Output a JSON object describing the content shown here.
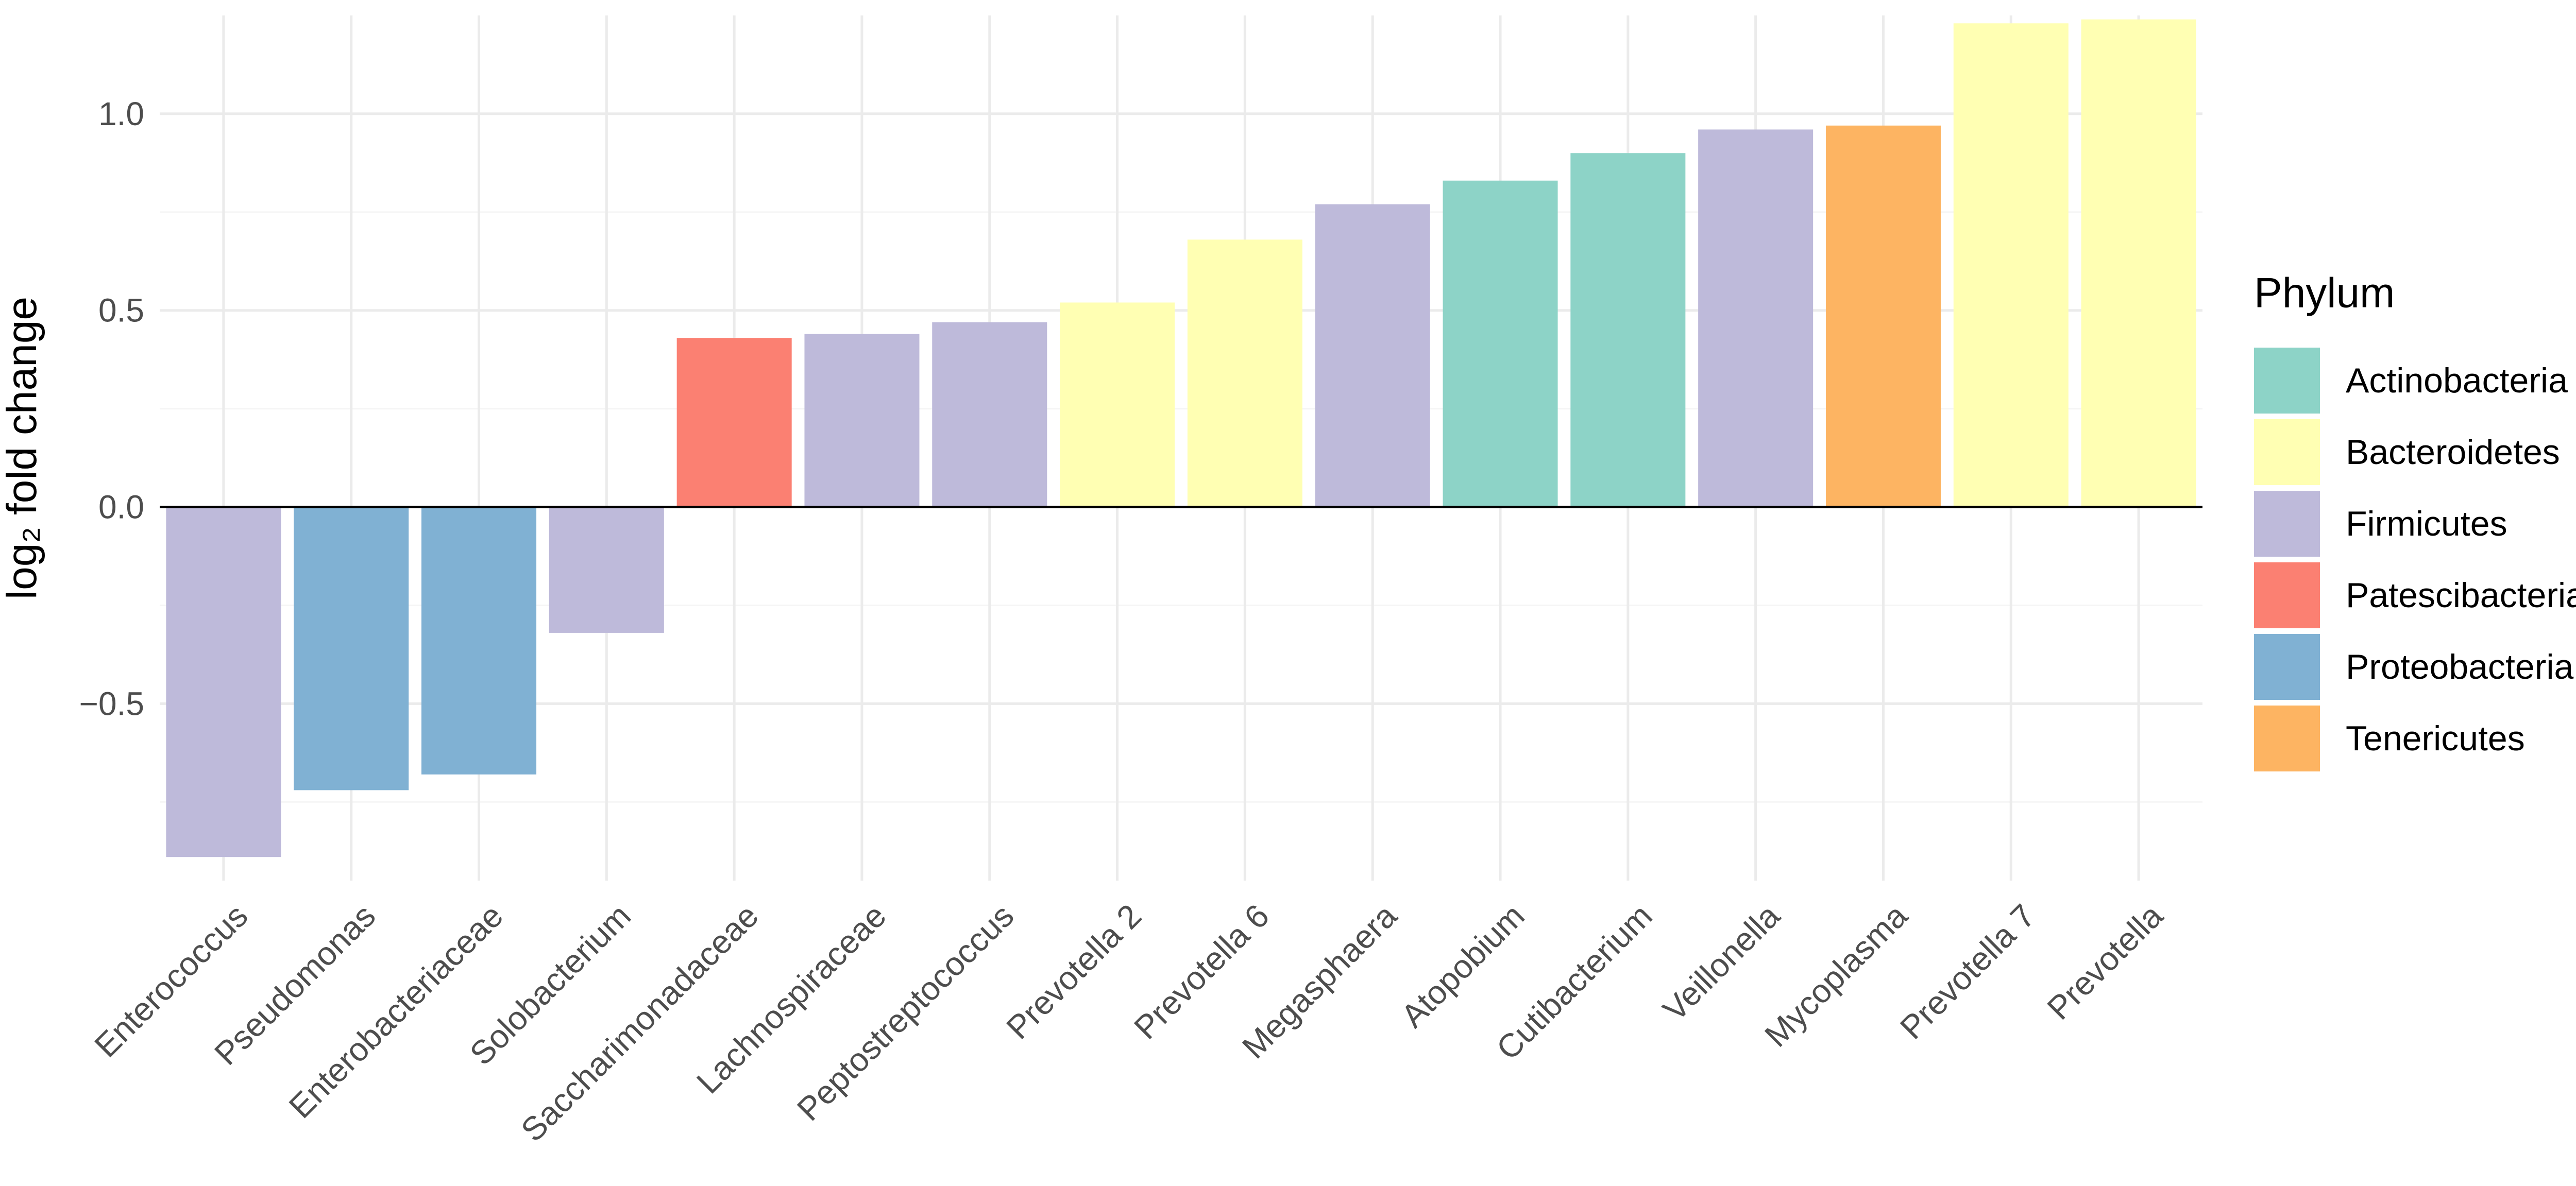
{
  "chart_data": {
    "type": "bar",
    "title": "",
    "xlabel": "",
    "ylabel": "log₂ fold change",
    "ylim": [
      -0.95,
      1.25
    ],
    "yticks": [
      -0.5,
      0.0,
      0.5,
      1.0
    ],
    "ytick_labels": [
      "−0.5",
      "0.0",
      "0.5",
      "1.0"
    ],
    "grid": true,
    "legend_position": "right",
    "legend_title": "Phylum",
    "categories": [
      "Enterococcus",
      "Pseudomonas",
      "Enterobacteriaceae",
      "Solobacterium",
      "Saccharimonadaceae",
      "Lachnospiraceae",
      "Peptostreptococcus",
      "Prevotella 2",
      "Prevotella 6",
      "Megasphaera",
      "Atopobium",
      "Cutibacterium",
      "Veillonella",
      "Mycoplasma",
      "Prevotella 7",
      "Prevotella"
    ],
    "values": [
      -0.89,
      -0.72,
      -0.68,
      -0.32,
      0.43,
      0.44,
      0.47,
      0.52,
      0.68,
      0.77,
      0.83,
      0.9,
      0.96,
      0.97,
      1.23,
      1.24
    ],
    "phylum": [
      "Firmicutes",
      "Proteobacteria",
      "Proteobacteria",
      "Firmicutes",
      "Patescibacteria",
      "Firmicutes",
      "Firmicutes",
      "Bacteroidetes",
      "Bacteroidetes",
      "Firmicutes",
      "Actinobacteria",
      "Actinobacteria",
      "Firmicutes",
      "Tenericutes",
      "Bacteroidetes",
      "Bacteroidetes"
    ],
    "legend": [
      {
        "name": "Actinobacteria",
        "color": "#8dd3c7"
      },
      {
        "name": "Bacteroidetes",
        "color": "#ffffb3"
      },
      {
        "name": "Firmicutes",
        "color": "#bebada"
      },
      {
        "name": "Patescibacteria",
        "color": "#fb8072"
      },
      {
        "name": "Proteobacteria",
        "color": "#80b1d3"
      },
      {
        "name": "Tenericutes",
        "color": "#fdb462"
      }
    ],
    "colors": {
      "grid_major": "#ebebeb",
      "grid_minor": "#f5f5f5",
      "zero_line": "#000000"
    }
  }
}
